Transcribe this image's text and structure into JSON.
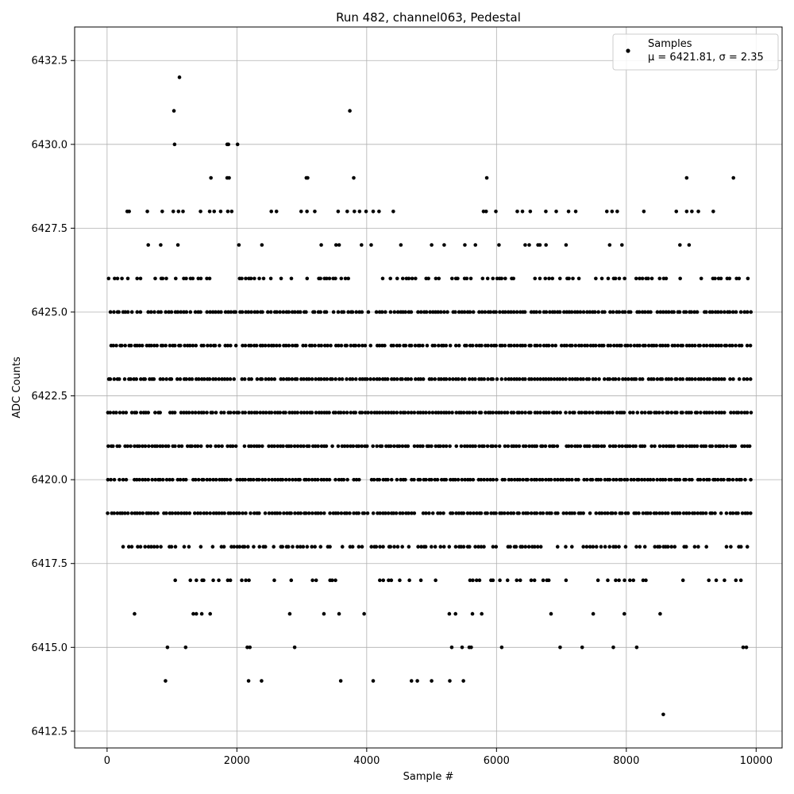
{
  "chart_data": {
    "type": "scatter",
    "title": "Run 482, channel063, Pedestal",
    "xlabel": "Sample #",
    "ylabel": "ADC Counts",
    "xlim": [
      -500,
      10400
    ],
    "ylim": [
      6412.0,
      6433.5
    ],
    "xticks": [
      0,
      2000,
      4000,
      6000,
      8000,
      10000
    ],
    "yticks": [
      6412.5,
      6415.0,
      6417.5,
      6420.0,
      6422.5,
      6425.0,
      6427.5,
      6430.0,
      6432.5
    ],
    "xtick_labels": [
      "0",
      "2000",
      "4000",
      "6000",
      "8000",
      "10000"
    ],
    "ytick_labels": [
      "6412.5",
      "6415.0",
      "6417.5",
      "6420.0",
      "6422.5",
      "6425.0",
      "6427.5",
      "6430.0",
      "6432.5"
    ],
    "grid": true,
    "legend_position": "top-right",
    "marker_color": "#000000",
    "series": [
      {
        "name": "Samples",
        "legend_label_line1": "Samples",
        "legend_label_line2": "μ = 6421.81, σ = 2.35",
        "mean": 6421.81,
        "sigma": 2.35,
        "n_samples": 9900,
        "sample_x_range": [
          0,
          9900
        ],
        "levels": [
          6419,
          6420,
          6421,
          6422,
          6423,
          6424,
          6425
        ],
        "sparse_levels": [
          {
            "y": 6418,
            "density": 0.55
          },
          {
            "y": 6426,
            "density": 0.45
          },
          {
            "y": 6417,
            "density": 0.18
          },
          {
            "y": 6427,
            "density": 0.1
          },
          {
            "y": 6416,
            "density": 0.06
          }
        ],
        "outliers": [
          [
            1115,
            6432
          ],
          [
            1030,
            6431
          ],
          [
            3740,
            6431
          ],
          [
            1040,
            6430
          ],
          [
            1850,
            6430
          ],
          [
            1870,
            6430
          ],
          [
            2010,
            6430
          ],
          [
            1600,
            6429
          ],
          [
            1850,
            6429
          ],
          [
            1880,
            6429
          ],
          [
            3070,
            6429
          ],
          [
            3090,
            6429
          ],
          [
            3800,
            6429
          ],
          [
            5850,
            6429
          ],
          [
            8930,
            6429
          ],
          [
            9650,
            6429
          ],
          [
            310,
            6428
          ],
          [
            340,
            6428
          ],
          [
            620,
            6428
          ],
          [
            850,
            6428
          ],
          [
            1020,
            6428
          ],
          [
            1100,
            6428
          ],
          [
            1170,
            6428
          ],
          [
            1440,
            6428
          ],
          [
            1580,
            6428
          ],
          [
            1650,
            6428
          ],
          [
            1750,
            6428
          ],
          [
            1860,
            6428
          ],
          [
            1920,
            6428
          ],
          [
            2530,
            6428
          ],
          [
            2610,
            6428
          ],
          [
            2990,
            6428
          ],
          [
            3080,
            6428
          ],
          [
            3200,
            6428
          ],
          [
            3560,
            6428
          ],
          [
            3700,
            6428
          ],
          [
            3810,
            6428
          ],
          [
            3890,
            6428
          ],
          [
            3990,
            6428
          ],
          [
            4100,
            6428
          ],
          [
            4190,
            6428
          ],
          [
            4410,
            6428
          ],
          [
            5800,
            6428
          ],
          [
            5840,
            6428
          ],
          [
            5990,
            6428
          ],
          [
            6320,
            6428
          ],
          [
            6400,
            6428
          ],
          [
            6520,
            6428
          ],
          [
            6760,
            6428
          ],
          [
            6920,
            6428
          ],
          [
            7110,
            6428
          ],
          [
            7220,
            6428
          ],
          [
            7700,
            6428
          ],
          [
            7780,
            6428
          ],
          [
            7860,
            6428
          ],
          [
            8270,
            6428
          ],
          [
            8770,
            6428
          ],
          [
            8930,
            6428
          ],
          [
            9010,
            6428
          ],
          [
            9110,
            6428
          ],
          [
            9340,
            6428
          ],
          [
            930,
            6415
          ],
          [
            1210,
            6415
          ],
          [
            2160,
            6415
          ],
          [
            2200,
            6415
          ],
          [
            2890,
            6415
          ],
          [
            5310,
            6415
          ],
          [
            5470,
            6415
          ],
          [
            5580,
            6415
          ],
          [
            5610,
            6415
          ],
          [
            6080,
            6415
          ],
          [
            6980,
            6415
          ],
          [
            7320,
            6415
          ],
          [
            7800,
            6415
          ],
          [
            8160,
            6415
          ],
          [
            9800,
            6415
          ],
          [
            9850,
            6415
          ],
          [
            900,
            6414
          ],
          [
            2180,
            6414
          ],
          [
            2380,
            6414
          ],
          [
            3600,
            6414
          ],
          [
            4100,
            6414
          ],
          [
            4690,
            6414
          ],
          [
            4780,
            6414
          ],
          [
            5000,
            6414
          ],
          [
            5280,
            6414
          ],
          [
            5490,
            6414
          ],
          [
            8570,
            6413
          ]
        ]
      }
    ]
  }
}
